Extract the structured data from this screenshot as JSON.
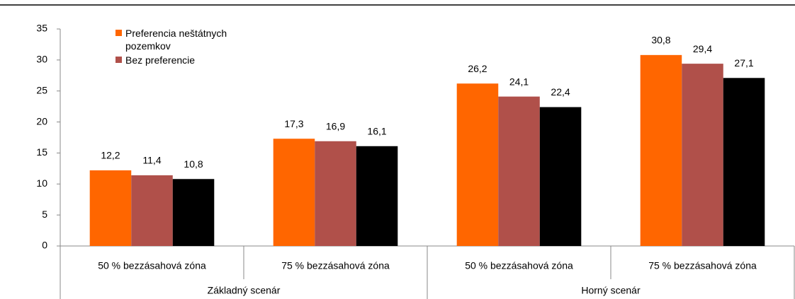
{
  "chart_data": {
    "type": "bar",
    "categories": [
      "50 % bezzásahová zóna",
      "75 % bezzásahová zóna",
      "50 % bezzásahová zóna",
      "75 % bezzásahová zóna"
    ],
    "category_groups": [
      {
        "name": "Základný scenár",
        "span": 2
      },
      {
        "name": "Horný scenár",
        "span": 2
      }
    ],
    "series": [
      {
        "name": "Preferencia neštátnych pozemkov",
        "color": "#ff6600",
        "values": [
          12.2,
          17.3,
          26.2,
          30.8
        ],
        "value_labels": [
          "12,2",
          "17,3",
          "26,2",
          "30,8"
        ]
      },
      {
        "name": "Bez preferencie",
        "color": "#b0504a",
        "values": [
          11.4,
          16.9,
          24.1,
          29.4
        ],
        "value_labels": [
          "11,4",
          "16,9",
          "24,1",
          "29,4"
        ]
      },
      {
        "color": "#000000",
        "values": [
          10.8,
          16.1,
          22.4,
          27.1
        ],
        "value_labels": [
          "10,8",
          "16,1",
          "22,4",
          "27,1"
        ]
      }
    ],
    "ylim": [
      0,
      35
    ],
    "yticks": [
      0,
      5,
      10,
      15,
      20,
      25,
      30,
      35
    ],
    "grid": false,
    "legend": "top-left"
  }
}
